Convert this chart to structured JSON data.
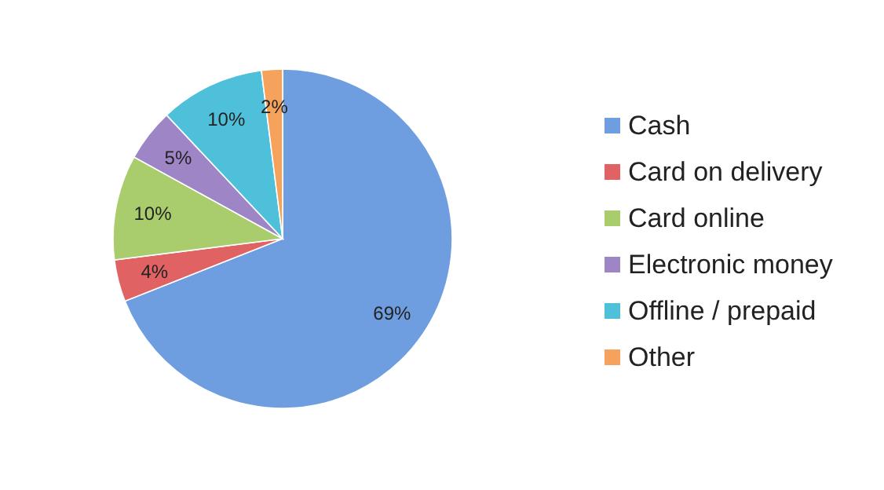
{
  "chart_data": {
    "type": "pie",
    "categories": [
      "Cash",
      "Card on delivery",
      "Card online",
      "Electronic money",
      "Offline / prepaid",
      "Other"
    ],
    "values": [
      69,
      4,
      10,
      5,
      10,
      2
    ],
    "colors": [
      "#6f9ee0",
      "#e06262",
      "#a9cc6c",
      "#9e85c6",
      "#4fc0da",
      "#f5a25c"
    ],
    "value_labels": [
      "69%",
      "4%",
      "10%",
      "5%",
      "10%",
      "2%"
    ],
    "legend": "right"
  }
}
